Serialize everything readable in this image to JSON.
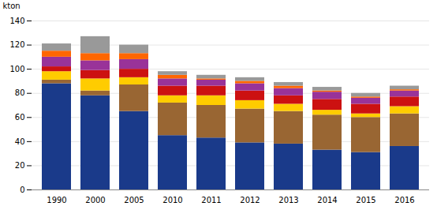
{
  "chart_data": {
    "type": "bar",
    "stacked": true,
    "ylabel": "kton",
    "categories": [
      "1990",
      "2000",
      "2005",
      "2010",
      "2011",
      "2012",
      "2013",
      "2014",
      "2015",
      "2016"
    ],
    "series": [
      {
        "color": "#1a3a8a",
        "values": [
          88,
          78,
          65,
          45,
          43,
          39,
          38,
          33,
          31,
          36
        ]
      },
      {
        "color": "#996633",
        "values": [
          3,
          4,
          22,
          27,
          27,
          28,
          27,
          29,
          29,
          27
        ]
      },
      {
        "color": "#ffcc00",
        "values": [
          7,
          10,
          6,
          6,
          8,
          7,
          6,
          4,
          3,
          6
        ]
      },
      {
        "color": "#cc1111",
        "values": [
          4,
          7,
          7,
          8,
          8,
          8,
          7,
          9,
          8,
          8
        ]
      },
      {
        "color": "#993399",
        "values": [
          8,
          8,
          8,
          6,
          5,
          6,
          6,
          6,
          5,
          5
        ]
      },
      {
        "color": "#ff6600",
        "values": [
          5,
          6,
          5,
          3,
          1,
          2,
          2,
          1,
          1,
          1
        ]
      },
      {
        "color": "#999999",
        "values": [
          6,
          14,
          7,
          3,
          3,
          3,
          3,
          3,
          3,
          3
        ]
      }
    ],
    "ylim": [
      0,
      140
    ],
    "yticks": [
      0,
      20,
      40,
      60,
      80,
      100,
      120,
      140
    ],
    "grid": true
  }
}
